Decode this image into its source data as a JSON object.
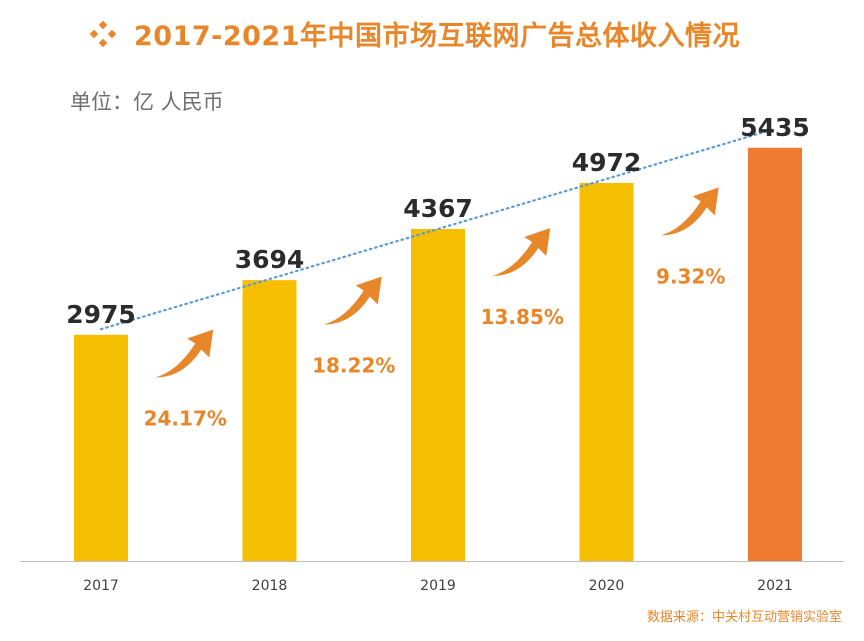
{
  "title": "2017-2021年中国市场互联网广告总体收入情况",
  "unit_label": "单位：亿 人民币",
  "source": "数据来源：中关村互动营销实验室",
  "colors": {
    "bar": "#F6BE00",
    "bar_highlight": "#EE7B30",
    "accent": "#E8862A",
    "trendline": "#5B9BD5",
    "value_label": "#2B2B2B",
    "axis": "#BFBFBF"
  },
  "chart_data": {
    "type": "bar",
    "title": "2017-2021年中国市场互联网广告总体收入情况",
    "ylabel": "单位：亿 人民币",
    "xlabel": "",
    "categories": [
      "2017",
      "2018",
      "2019",
      "2020",
      "2021"
    ],
    "values": [
      2975,
      3694,
      4367,
      4972,
      5435
    ],
    "value_labels": [
      "2975",
      "3694",
      "4367",
      "4972",
      "5435"
    ],
    "highlight_index": 4,
    "growth_rates": [
      "24.17%",
      "18.22%",
      "13.85%",
      "9.32%"
    ],
    "trendline": "linear",
    "ylim": [
      0,
      5800
    ],
    "grid": false,
    "legend": "none"
  }
}
